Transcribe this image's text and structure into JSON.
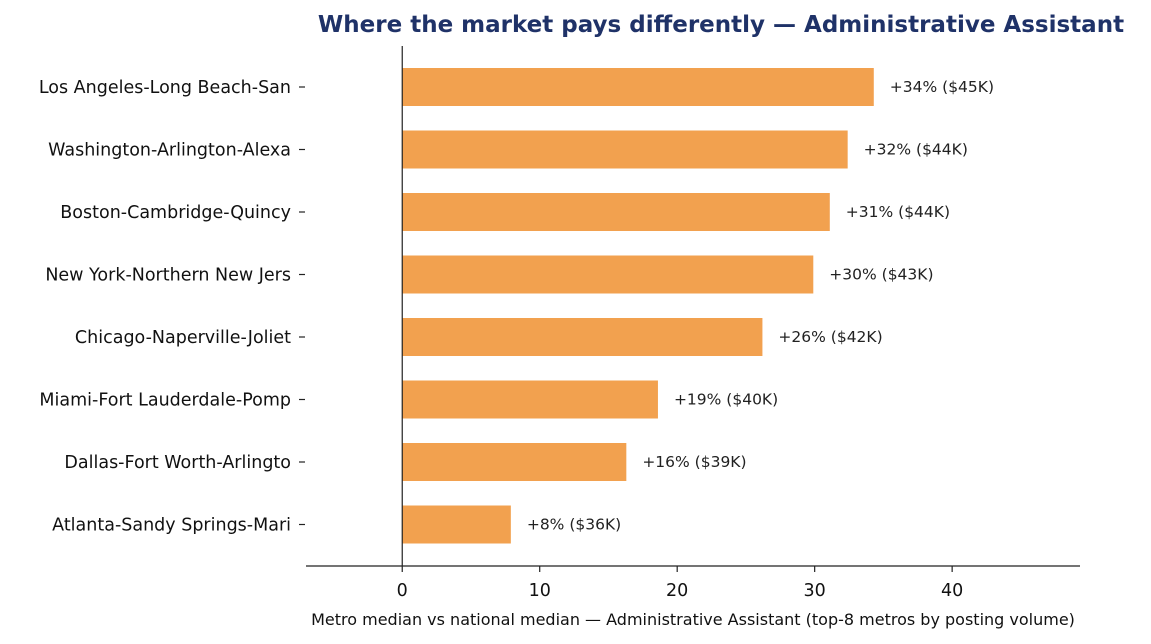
{
  "chart_data": {
    "type": "bar",
    "orientation": "horizontal",
    "title": "Where the market pays differently — Administrative Assistant",
    "xlabel": "Metro median vs national median — Administrative Assistant (top-8 metros by posting volume)",
    "ylabel": "",
    "categories": [
      "Los Angeles-Long Beach-San",
      "Washington-Arlington-Alexa",
      "Boston-Cambridge-Quincy",
      "New York-Northern New Jers",
      "Chicago-Naperville-Joliet",
      "Miami-Fort Lauderdale-Pomp",
      "Dallas-Fort Worth-Arlingto",
      "Atlanta-Sandy Springs-Mari"
    ],
    "values": [
      34.3,
      32.4,
      31.1,
      29.9,
      26.2,
      18.6,
      16.3,
      7.9
    ],
    "value_labels": [
      "+34%  ($45K)",
      "+32%  ($44K)",
      "+31%  ($44K)",
      "+30%  ($43K)",
      "+26%  ($42K)",
      "+19%  ($40K)",
      "+16%  ($39K)",
      "+8%  ($36K)"
    ],
    "xlim": [
      -7,
      49.3
    ],
    "xticks": [
      0,
      10,
      20,
      30,
      40
    ],
    "xtick_labels": [
      "0",
      "10",
      "20",
      "30",
      "40"
    ],
    "grid": false,
    "colors": {
      "bar": "#f2a14f",
      "axis": "#222222",
      "title": "#1f3268"
    }
  }
}
